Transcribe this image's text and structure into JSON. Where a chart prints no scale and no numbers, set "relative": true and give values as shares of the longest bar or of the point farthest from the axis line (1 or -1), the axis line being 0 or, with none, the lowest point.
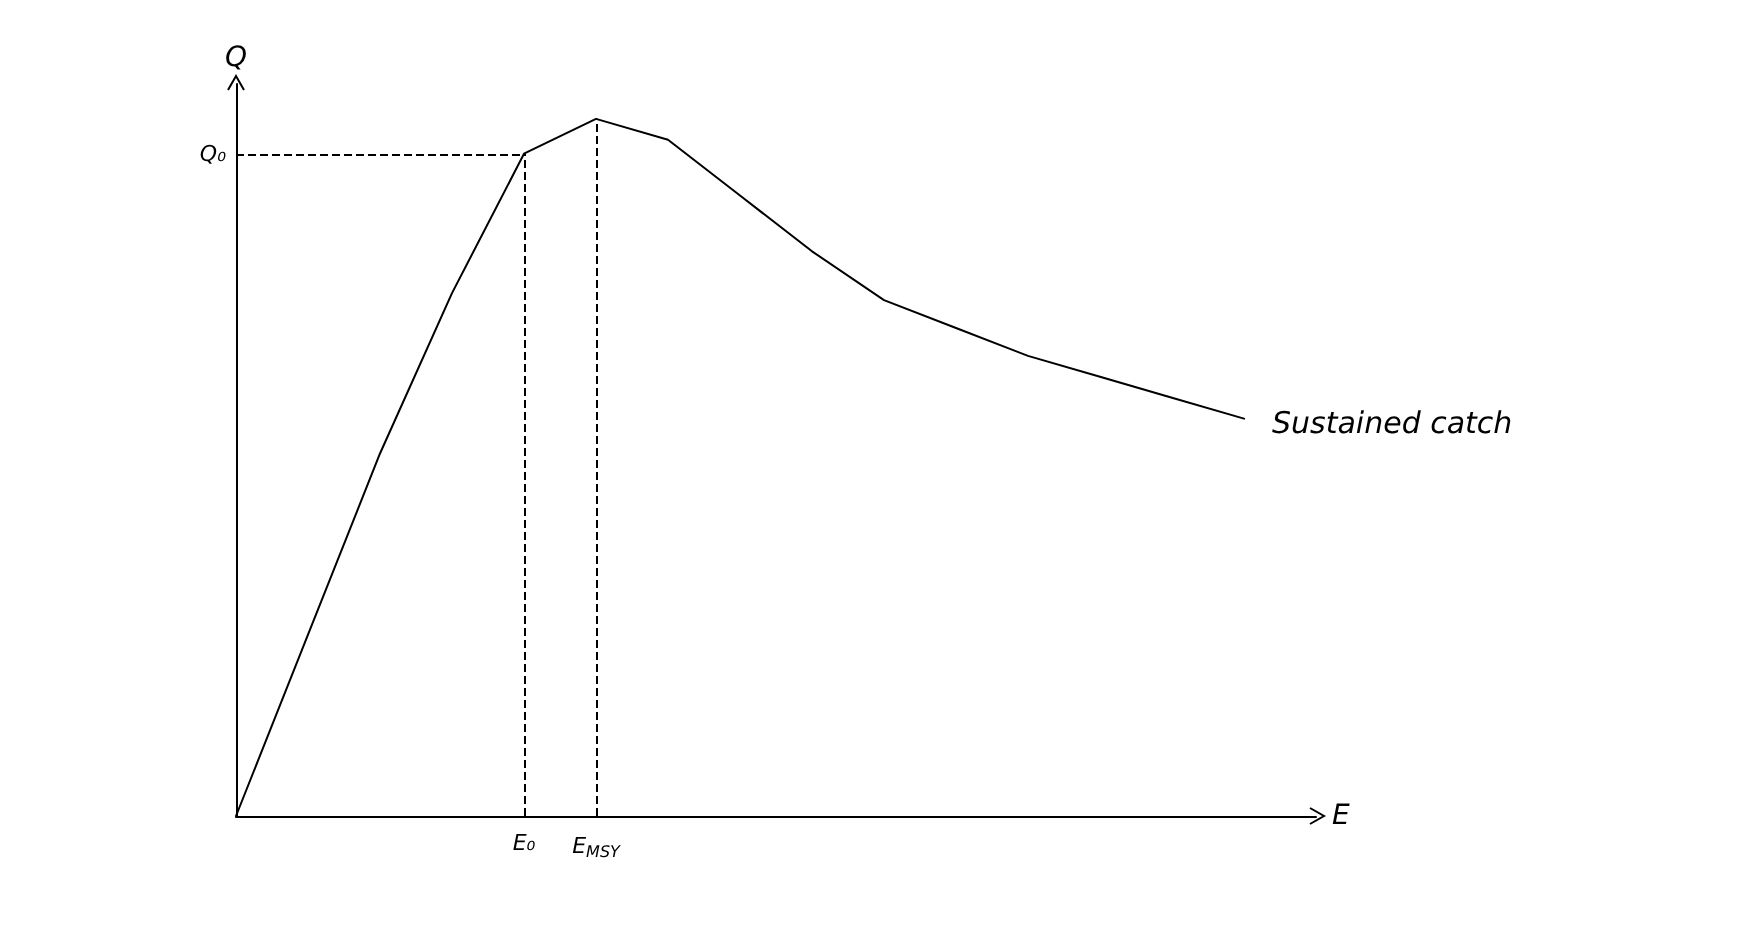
{
  "chart_data": {
    "type": "line",
    "relative": true,
    "xlabel": "E",
    "ylabel": "Q",
    "categories": [
      null,
      null,
      null,
      null,
      "E₀",
      "E$_{MSY}$",
      null,
      null,
      null,
      null,
      null,
      null,
      null,
      null,
      null,
      null
    ],
    "series": [
      {
        "name": "Sustained catch",
        "color": "#000000",
        "values": [
          0,
          0.26,
          0.52,
          0.75,
          0.95,
          1,
          0.97,
          0.89,
          0.81,
          0.74,
          0.7,
          0.66,
          0.63,
          0.6,
          0.57,
          null
        ]
      }
    ],
    "ref_lines": [
      {
        "axis": "y",
        "value": 0.95,
        "label": "Q₀",
        "line_style": "dashed",
        "color": "#000000"
      },
      {
        "axis": "x",
        "value": "E₀",
        "label": null,
        "line_style": "dashed",
        "color": "#000000"
      },
      {
        "axis": "x",
        "value": "E$_{MSY}$",
        "label": null,
        "line_style": "dashed",
        "color": "#000000"
      }
    ],
    "legend": false,
    "grid": false,
    "marker": "none",
    "line_style": "solid"
  }
}
